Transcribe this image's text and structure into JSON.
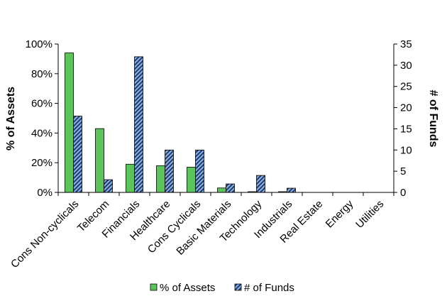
{
  "chart_data": {
    "type": "bar",
    "categories": [
      "Cons Non-cyclicals",
      "Telecom",
      "Financials",
      "Healthcare",
      "Cons Cyclicals",
      "Basic Materials",
      "Technology",
      "Industrials",
      "Real Estate",
      "Energy",
      "Utilities"
    ],
    "series": [
      {
        "name": "% of Assets",
        "axis": "left",
        "color": "#5BC45B",
        "values": [
          94,
          43,
          19,
          18,
          17,
          3,
          0.5,
          0.5,
          0,
          0,
          0
        ]
      },
      {
        "name": "# of Funds",
        "axis": "right",
        "color": "#1F3A6E",
        "pattern": "hatch",
        "pattern_color": "#8FB4E3",
        "values": [
          18,
          3,
          32,
          10,
          10,
          2,
          4,
          1,
          0,
          0,
          0
        ]
      }
    ],
    "ylabel_left": "% of Assets",
    "ylabel_right": "# of Funds",
    "ylim_left": [
      0,
      100
    ],
    "ylim_right": [
      0,
      35
    ],
    "yticks_left": [
      "0%",
      "20%",
      "40%",
      "60%",
      "80%",
      "100%"
    ],
    "yticks_right": [
      "0",
      "5",
      "10",
      "15",
      "20",
      "25",
      "30",
      "35"
    ],
    "grid": false,
    "legend_position": "bottom"
  }
}
